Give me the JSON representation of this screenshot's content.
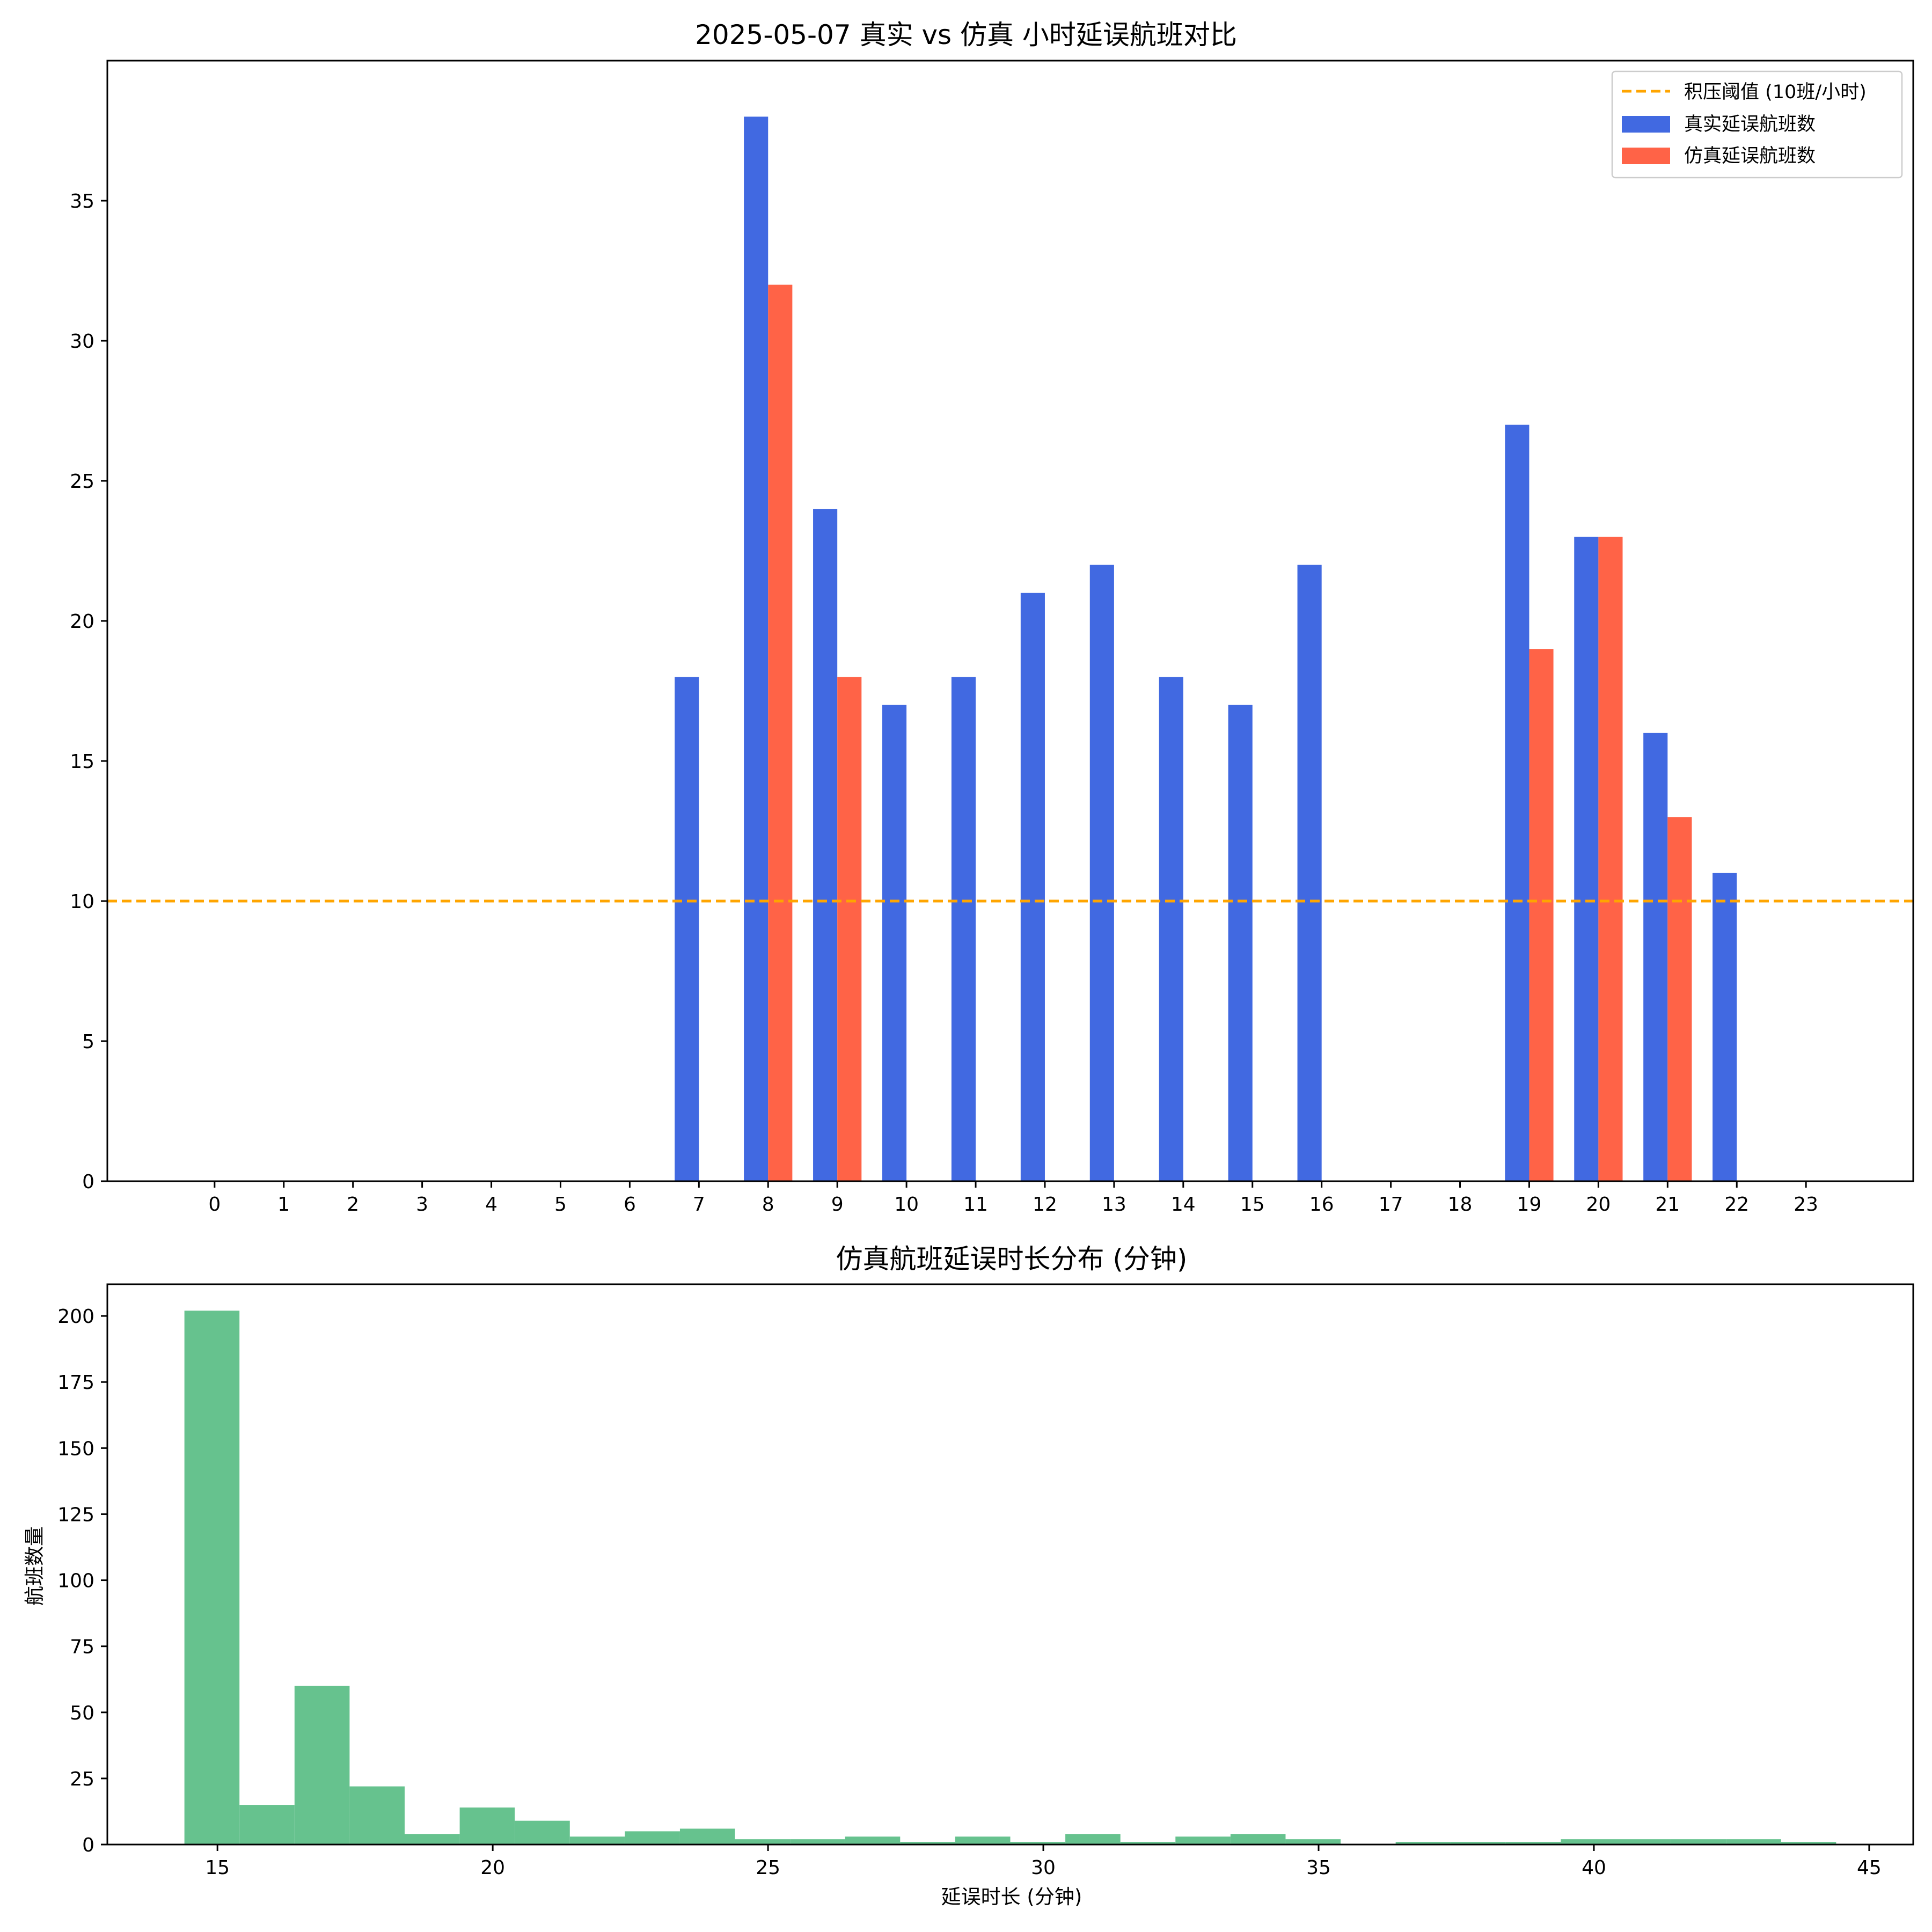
{
  "chart_data": [
    {
      "type": "bar",
      "title": "2025-05-07 真实 vs 仿真 小时延误航班对比",
      "xlabel": "",
      "ylabel": "",
      "categories": [
        "0",
        "1",
        "2",
        "3",
        "4",
        "5",
        "6",
        "7",
        "8",
        "9",
        "10",
        "11",
        "12",
        "13",
        "14",
        "15",
        "16",
        "17",
        "18",
        "19",
        "20",
        "21",
        "22",
        "23"
      ],
      "series": [
        {
          "name": "真实延误航班数",
          "color": "#4169E1",
          "values": [
            0,
            0,
            0,
            0,
            0,
            0,
            0,
            18,
            38,
            24,
            17,
            18,
            21,
            22,
            18,
            17,
            22,
            0,
            0,
            27,
            23,
            16,
            11,
            0
          ]
        },
        {
          "name": "仿真延误航班数",
          "color": "#FF6347",
          "values": [
            0,
            0,
            0,
            0,
            0,
            0,
            0,
            0,
            32,
            18,
            0,
            0,
            0,
            0,
            0,
            0,
            0,
            0,
            0,
            19,
            23,
            13,
            0,
            0
          ]
        }
      ],
      "threshold": {
        "value": 10,
        "label": "积压阈值 (10班/小时)",
        "color": "#FFA500",
        "style": "dashed"
      },
      "ylim": [
        0,
        40
      ],
      "yticks": [
        0,
        5,
        10,
        15,
        20,
        25,
        30,
        35
      ],
      "legend": "top-right",
      "grid": false
    },
    {
      "type": "histogram",
      "title": "仿真航班延误时长分布 (分钟)",
      "xlabel": "延误时长 (分钟)",
      "ylabel": "航班数量",
      "color": "#66C28E",
      "bins": [
        {
          "x0": 14.4,
          "x1": 15.4,
          "count": 202
        },
        {
          "x0": 15.4,
          "x1": 16.4,
          "count": 15
        },
        {
          "x0": 16.4,
          "x1": 17.4,
          "count": 60
        },
        {
          "x0": 17.4,
          "x1": 18.4,
          "count": 22
        },
        {
          "x0": 18.4,
          "x1": 19.4,
          "count": 4
        },
        {
          "x0": 19.4,
          "x1": 20.4,
          "count": 14
        },
        {
          "x0": 20.4,
          "x1": 21.4,
          "count": 9
        },
        {
          "x0": 21.4,
          "x1": 22.4,
          "count": 3
        },
        {
          "x0": 22.4,
          "x1": 23.4,
          "count": 5
        },
        {
          "x0": 23.4,
          "x1": 24.4,
          "count": 6
        },
        {
          "x0": 24.4,
          "x1": 25.4,
          "count": 2
        },
        {
          "x0": 25.4,
          "x1": 26.4,
          "count": 2
        },
        {
          "x0": 26.4,
          "x1": 27.4,
          "count": 3
        },
        {
          "x0": 27.4,
          "x1": 28.4,
          "count": 1
        },
        {
          "x0": 28.4,
          "x1": 29.4,
          "count": 3
        },
        {
          "x0": 29.4,
          "x1": 30.4,
          "count": 1
        },
        {
          "x0": 30.4,
          "x1": 31.4,
          "count": 4
        },
        {
          "x0": 31.4,
          "x1": 32.4,
          "count": 1
        },
        {
          "x0": 32.4,
          "x1": 33.4,
          "count": 3
        },
        {
          "x0": 33.4,
          "x1": 34.4,
          "count": 4
        },
        {
          "x0": 34.4,
          "x1": 35.4,
          "count": 2
        },
        {
          "x0": 35.4,
          "x1": 36.4,
          "count": 0
        },
        {
          "x0": 36.4,
          "x1": 37.4,
          "count": 1
        },
        {
          "x0": 37.4,
          "x1": 38.4,
          "count": 1
        },
        {
          "x0": 38.4,
          "x1": 39.4,
          "count": 1
        },
        {
          "x0": 39.4,
          "x1": 40.4,
          "count": 2
        },
        {
          "x0": 40.4,
          "x1": 41.4,
          "count": 2
        },
        {
          "x0": 41.4,
          "x1": 42.4,
          "count": 2
        },
        {
          "x0": 42.4,
          "x1": 43.4,
          "count": 2
        },
        {
          "x0": 43.4,
          "x1": 44.4,
          "count": 1
        }
      ],
      "xlim": [
        13.0,
        45.8
      ],
      "xticks": [
        15,
        20,
        25,
        30,
        35,
        40,
        45
      ],
      "ylim": [
        0,
        212
      ],
      "yticks": [
        0,
        25,
        50,
        75,
        100,
        125,
        150,
        175,
        200
      ],
      "grid": false
    }
  ]
}
